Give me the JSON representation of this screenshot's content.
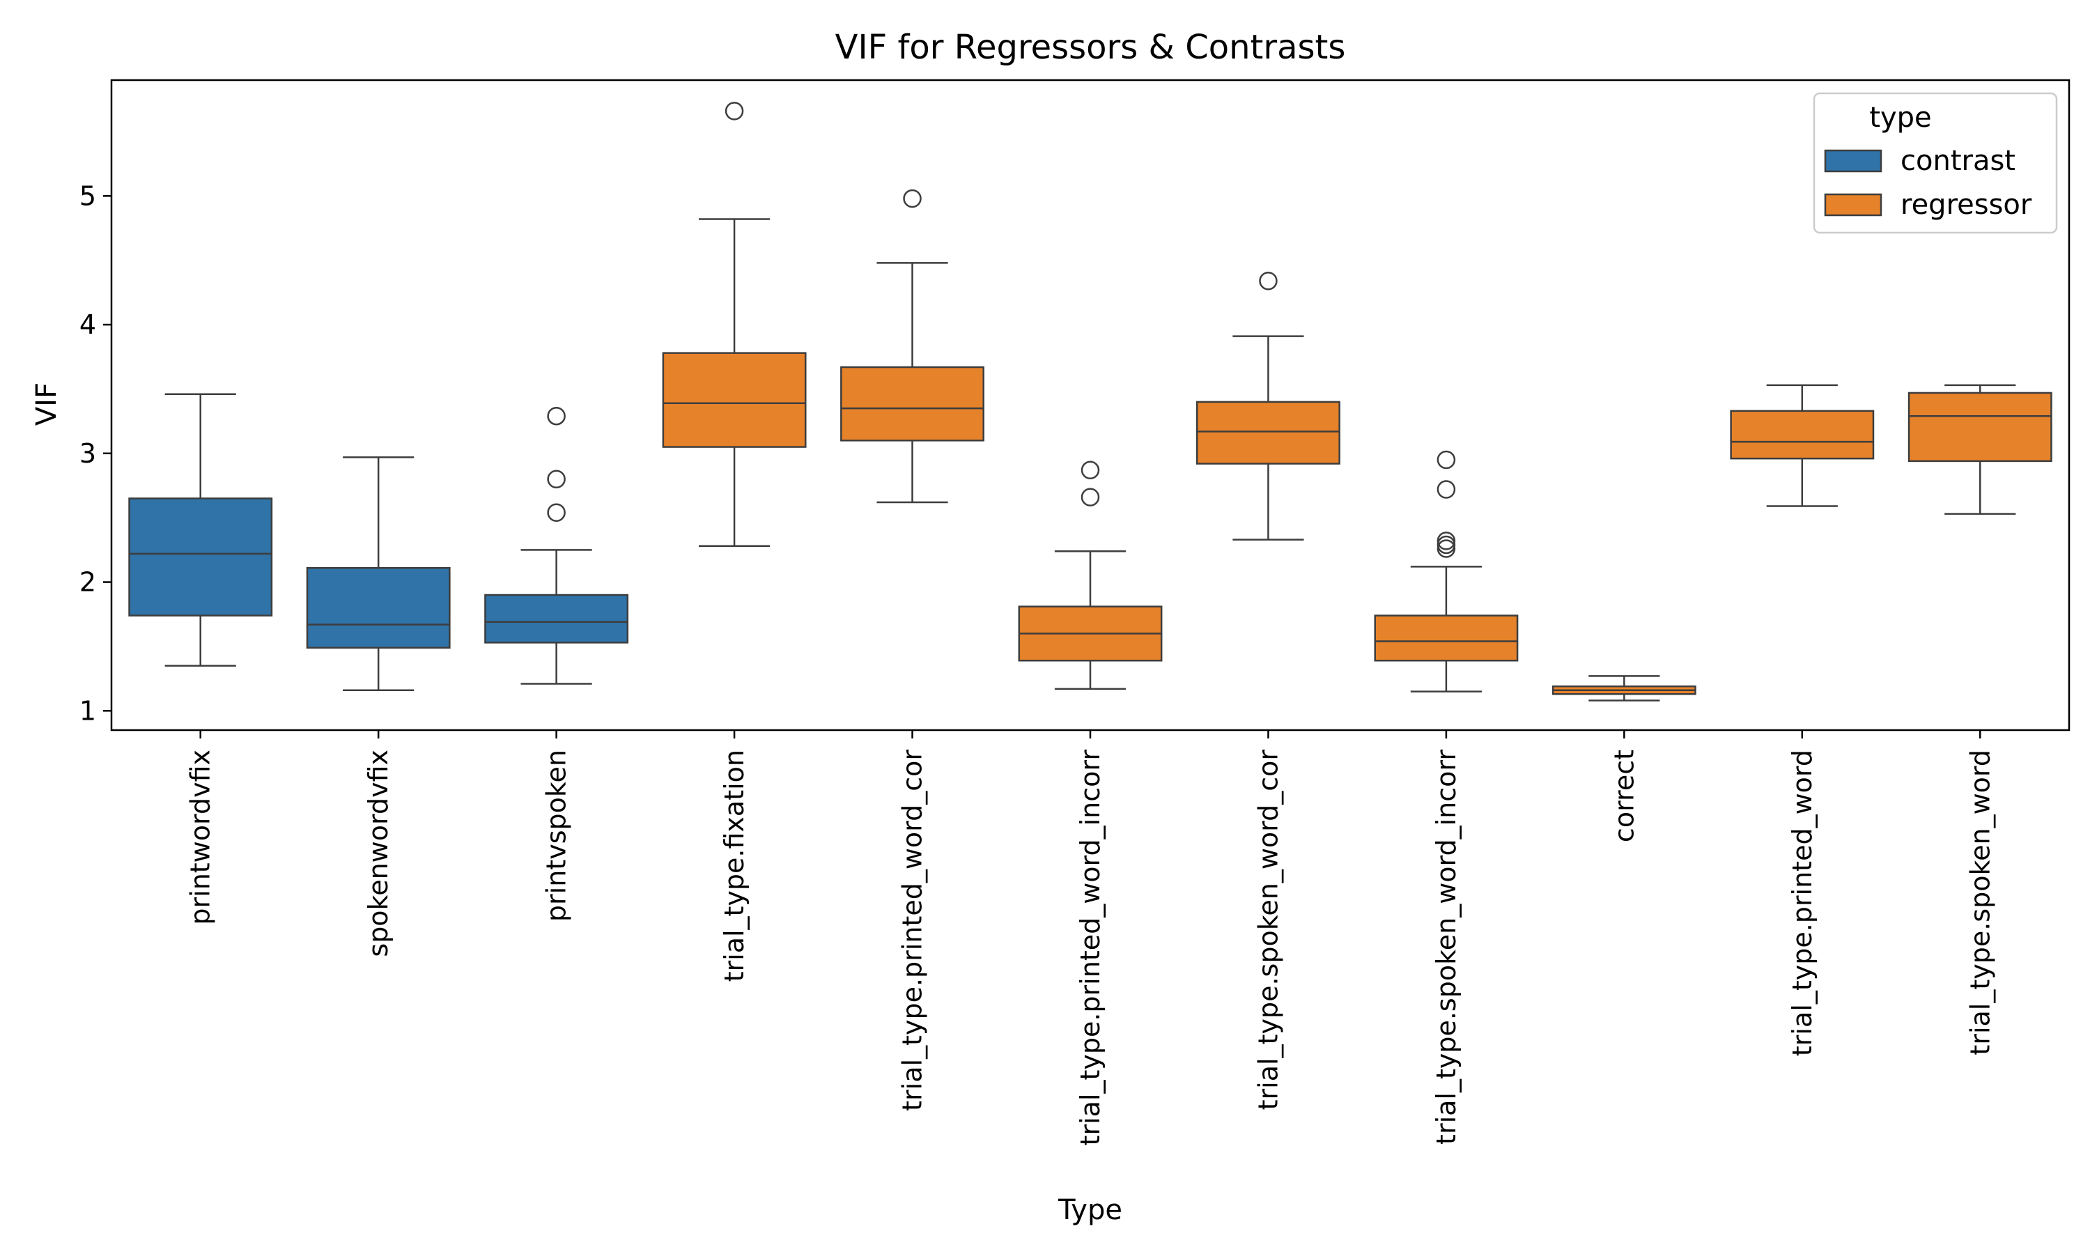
{
  "chart_data": {
    "type": "box",
    "title": "VIF for Regressors & Contrasts",
    "xlabel": "Type",
    "ylabel": "VIF",
    "ylim": [
      0.85,
      5.9
    ],
    "yticks": [
      1,
      2,
      3,
      4,
      5
    ],
    "legend": {
      "title": "type",
      "placement": "top-right",
      "entries": [
        {
          "name": "contrast",
          "color": "#2f73a8"
        },
        {
          "name": "regressor",
          "color": "#e6822a"
        }
      ]
    },
    "categories": [
      "printwordvfix",
      "spokenwordvfix",
      "printvspoken",
      "trial_type.fixation",
      "trial_type.printed_word_cor",
      "trial_type.printed_word_incorr",
      "trial_type.spoken_word_cor",
      "trial_type.spoken_word_incorr",
      "correct",
      "trial_type.printed_word",
      "trial_type.spoken_word"
    ],
    "boxes": [
      {
        "category": "printwordvfix",
        "type": "contrast",
        "whisker_low": 1.35,
        "q1": 1.74,
        "median": 2.22,
        "q3": 2.65,
        "whisker_high": 3.46,
        "outliers": []
      },
      {
        "category": "spokenwordvfix",
        "type": "contrast",
        "whisker_low": 1.16,
        "q1": 1.49,
        "median": 1.67,
        "q3": 2.11,
        "whisker_high": 2.97,
        "outliers": []
      },
      {
        "category": "printvspoken",
        "type": "contrast",
        "whisker_low": 1.21,
        "q1": 1.53,
        "median": 1.69,
        "q3": 1.9,
        "whisker_high": 2.25,
        "outliers": [
          2.54,
          2.8,
          3.29
        ]
      },
      {
        "category": "trial_type.fixation",
        "type": "regressor",
        "whisker_low": 2.28,
        "q1": 3.05,
        "median": 3.39,
        "q3": 3.78,
        "whisker_high": 4.82,
        "outliers": [
          5.66
        ]
      },
      {
        "category": "trial_type.printed_word_cor",
        "type": "regressor",
        "whisker_low": 2.62,
        "q1": 3.1,
        "median": 3.35,
        "q3": 3.67,
        "whisker_high": 4.48,
        "outliers": [
          4.98
        ]
      },
      {
        "category": "trial_type.printed_word_incorr",
        "type": "regressor",
        "whisker_low": 1.17,
        "q1": 1.39,
        "median": 1.6,
        "q3": 1.81,
        "whisker_high": 2.24,
        "outliers": [
          2.66,
          2.87
        ]
      },
      {
        "category": "trial_type.spoken_word_cor",
        "type": "regressor",
        "whisker_low": 2.33,
        "q1": 2.92,
        "median": 3.17,
        "q3": 3.4,
        "whisker_high": 3.91,
        "outliers": [
          4.34
        ]
      },
      {
        "category": "trial_type.spoken_word_incorr",
        "type": "regressor",
        "whisker_low": 1.15,
        "q1": 1.39,
        "median": 1.54,
        "q3": 1.74,
        "whisker_high": 2.12,
        "outliers": [
          2.26,
          2.29,
          2.32,
          2.72,
          2.95
        ]
      },
      {
        "category": "correct",
        "type": "regressor",
        "whisker_low": 1.08,
        "q1": 1.13,
        "median": 1.16,
        "q3": 1.19,
        "whisker_high": 1.27,
        "outliers": []
      },
      {
        "category": "trial_type.printed_word",
        "type": "regressor",
        "whisker_low": 2.59,
        "q1": 2.96,
        "median": 3.09,
        "q3": 3.33,
        "whisker_high": 3.53,
        "outliers": []
      },
      {
        "category": "trial_type.spoken_word",
        "type": "regressor",
        "whisker_low": 2.53,
        "q1": 2.94,
        "median": 3.29,
        "q3": 3.47,
        "whisker_high": 3.53,
        "outliers": []
      }
    ]
  }
}
